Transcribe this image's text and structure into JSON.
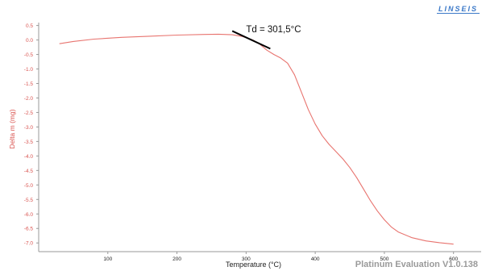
{
  "brand": {
    "logo_text": "LINSEIS"
  },
  "footer": {
    "version_label": "Platinum Evaluation V1.0.138"
  },
  "annotation": {
    "text": "Td = 301,5°C",
    "line_color": "#000000"
  },
  "colors": {
    "series": "#e8746f",
    "axis_text": "#d9534f",
    "frame": "#9a9a9a",
    "text": "#222222"
  },
  "chart_data": {
    "type": "line",
    "title": "",
    "xlabel": "Temperature (°C)",
    "ylabel": "Delta m (mg)",
    "xlim": [
      0,
      640
    ],
    "ylim": [
      -7.3,
      0.6
    ],
    "xticks": [
      100,
      200,
      300,
      400,
      500,
      600
    ],
    "yticks": [
      0.5,
      0.0,
      -0.5,
      -1.0,
      -1.5,
      -2.0,
      -2.5,
      -3.0,
      -3.5,
      -4.0,
      -4.5,
      -5.0,
      -5.5,
      -6.0,
      -6.5,
      -7.0
    ],
    "ytick_labels": [
      "0.5",
      "0.0",
      "-0.5",
      "-1.0",
      "-1.5",
      "-2.0",
      "-2.5",
      "-3.0",
      "-3.5",
      "-4.0",
      "-4.5",
      "-5.0",
      "-5.5",
      "-6.0",
      "-6.5",
      "-7.0"
    ],
    "grid": false,
    "series": [
      {
        "x": [
          30,
          50,
          80,
          120,
          160,
          200,
          240,
          260,
          280,
          295,
          310,
          320,
          330,
          340,
          350,
          360,
          370,
          380,
          390,
          400,
          410,
          420,
          430,
          440,
          450,
          460,
          470,
          480,
          490,
          500,
          510,
          520,
          540,
          560,
          580,
          600
        ],
        "values": [
          -0.13,
          -0.05,
          0.03,
          0.09,
          0.13,
          0.17,
          0.19,
          0.2,
          0.18,
          0.12,
          0.0,
          -0.15,
          -0.35,
          -0.5,
          -0.62,
          -0.8,
          -1.2,
          -1.8,
          -2.4,
          -2.9,
          -3.3,
          -3.6,
          -3.85,
          -4.1,
          -4.4,
          -4.75,
          -5.15,
          -5.55,
          -5.9,
          -6.2,
          -6.45,
          -6.62,
          -6.82,
          -6.93,
          -6.99,
          -7.04
        ]
      }
    ],
    "tangent": {
      "x": [
        280,
        335
      ],
      "y": [
        0.31,
        -0.3
      ]
    }
  }
}
